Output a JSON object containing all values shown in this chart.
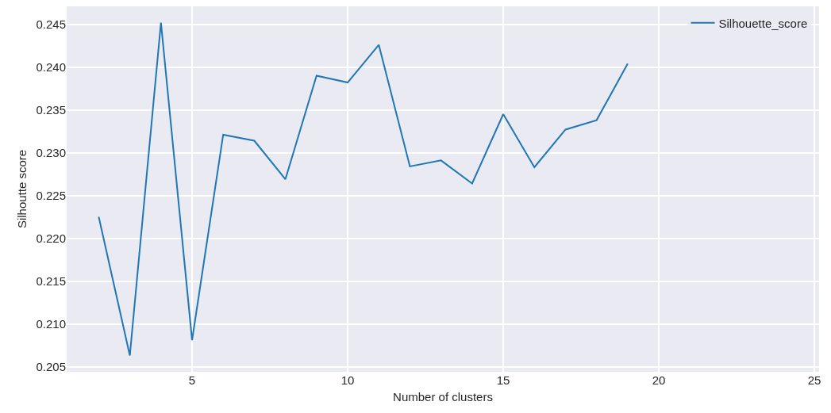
{
  "chart_data": {
    "type": "line",
    "xlabel": "Number of clusters",
    "ylabel": "Silhoutte score",
    "x": [
      2,
      3,
      4,
      5,
      6,
      7,
      8,
      9,
      10,
      11,
      12,
      13,
      14,
      15,
      16,
      17,
      18,
      19
    ],
    "series": [
      {
        "name": "Silhouette_score",
        "color": "#1f77b4",
        "values": [
          0.2225,
          0.2063,
          0.2452,
          0.2081,
          0.2321,
          0.2314,
          0.2269,
          0.239,
          0.2382,
          0.2426,
          0.2284,
          0.2291,
          0.2264,
          0.2345,
          0.2283,
          0.2327,
          0.2338,
          0.2404
        ]
      }
    ],
    "xlim": [
      0.97,
      25.15
    ],
    "xticks": [
      5,
      10,
      15,
      20,
      25
    ],
    "ylim": [
      0.2044,
      0.2471
    ],
    "yticks": [
      0.205,
      {
        "value": 0.21,
        "label": "0.210"
      },
      0.215,
      {
        "value": 0.22,
        "label": "0.220"
      },
      0.225,
      {
        "value": 0.23,
        "label": "0.230"
      },
      0.235,
      {
        "value": 0.24,
        "label": "0.240"
      },
      0.245
    ],
    "grid": true,
    "legend": "top right",
    "marker": "none",
    "line_style": "solid"
  }
}
